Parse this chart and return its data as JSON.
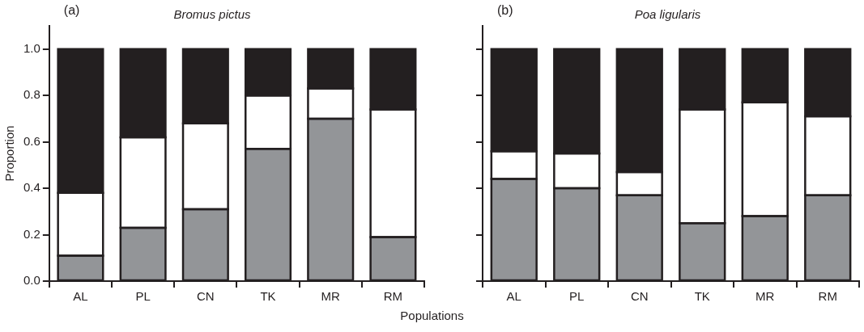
{
  "chart_data": [
    {
      "type": "bar",
      "title": "Bromus pictus",
      "annotations": [
        "(a)"
      ],
      "ylabel": "Proportion",
      "xlabel": "Populations",
      "stacked": true,
      "categories": [
        "AL",
        "PL",
        "CN",
        "TK",
        "MR",
        "RM"
      ],
      "series": [
        {
          "color": "#939598",
          "values": [
            0.11,
            0.23,
            0.31,
            0.57,
            0.7,
            0.19
          ]
        },
        {
          "color": "#ffffff",
          "values": [
            0.27,
            0.39,
            0.37,
            0.23,
            0.13,
            0.55
          ]
        },
        {
          "color": "#231f20",
          "values": [
            0.62,
            0.38,
            0.32,
            0.2,
            0.17,
            0.26
          ]
        }
      ],
      "ylim": [
        0,
        1.1
      ],
      "yticks": [
        {
          "value": 0,
          "label": "0.0"
        },
        0.2,
        0.4,
        0.6,
        0.8,
        {
          "value": 1,
          "label": "1.0"
        }
      ]
    },
    {
      "type": "bar",
      "title": "Poa ligularis",
      "annotations": [
        "(b)"
      ],
      "stacked": true,
      "tick_labels": "x",
      "categories": [
        "AL",
        "PL",
        "CN",
        "TK",
        "MR",
        "RM"
      ],
      "series": [
        {
          "color": "#939598",
          "values": [
            0.44,
            0.4,
            0.37,
            0.25,
            0.28,
            0.37
          ]
        },
        {
          "color": "#ffffff",
          "values": [
            0.12,
            0.15,
            0.1,
            0.49,
            0.49,
            0.34
          ]
        },
        {
          "color": "#231f20",
          "values": [
            0.44,
            0.45,
            0.53,
            0.26,
            0.23,
            0.29
          ]
        }
      ],
      "ylim": [
        0,
        1.1
      ],
      "yticks": [
        0,
        0.2,
        0.4,
        0.6,
        0.8,
        1
      ]
    }
  ]
}
